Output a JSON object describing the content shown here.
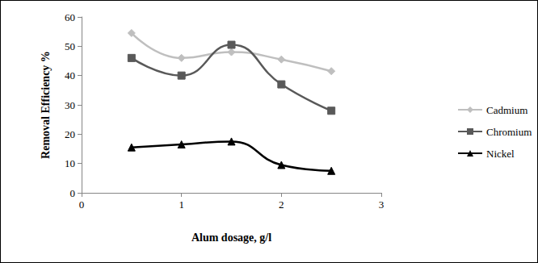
{
  "chart_data": {
    "type": "line",
    "x_label": "Alum dosage, g/l",
    "y_label": "Removal Efficiency %",
    "x": [
      0.5,
      1,
      1.5,
      2,
      2.5
    ],
    "series": [
      {
        "name": "Cadmium",
        "color": "#bfbfbf",
        "marker": "diamond",
        "line_style": "smooth",
        "values": [
          54.5,
          46,
          48,
          45.5,
          41.5
        ]
      },
      {
        "name": "Chromium",
        "color": "#595959",
        "marker": "square",
        "line_style": "smooth",
        "values": [
          46,
          40,
          50.5,
          37,
          28
        ]
      },
      {
        "name": "Nickel",
        "color": "#000000",
        "marker": "triangle",
        "line_style": "smooth",
        "values": [
          15.5,
          16.5,
          17.5,
          9.5,
          7.5
        ]
      }
    ],
    "xlim": [
      0,
      3
    ],
    "xticks": [
      0,
      1,
      2,
      3
    ],
    "ylim": [
      0,
      60
    ],
    "yticks": [
      0,
      10,
      20,
      30,
      40,
      50,
      60
    ],
    "grid": false,
    "legend": "right"
  }
}
